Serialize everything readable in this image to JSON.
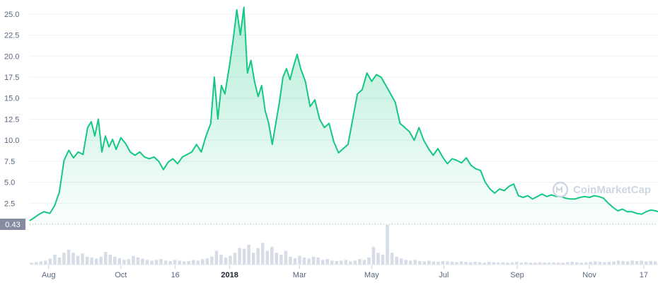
{
  "watermark": {
    "text": "CoinMarketCap",
    "icon": "coinmarketcap-logo-icon"
  },
  "current_badge": {
    "label": "0.43",
    "value": 0.43
  },
  "colors": {
    "line": "#16c784",
    "area_top": "#16c784",
    "grid": "#eef1f6",
    "volume": "#d7dde6",
    "badge": "#858ca2",
    "axis_text": "#58667e"
  },
  "chart_data": {
    "type": "area",
    "title": "",
    "xlabel": "",
    "ylabel": "",
    "ylim": [
      0,
      26
    ],
    "y_ticks": [
      "2.5",
      "5.0",
      "7.5",
      "10.0",
      "12.5",
      "15.0",
      "17.5",
      "20.0",
      "22.5",
      "25.0"
    ],
    "x_ticks": [
      {
        "label": "Aug",
        "date": "2017-08-01",
        "bold": false
      },
      {
        "label": "Oct",
        "date": "2017-10-01",
        "bold": false
      },
      {
        "label": "16",
        "date": "2017-11-16",
        "bold": false
      },
      {
        "label": "2018",
        "date": "2018-01-01",
        "bold": true
      },
      {
        "label": "Mar",
        "date": "2018-03-01",
        "bold": false
      },
      {
        "label": "May",
        "date": "2018-05-01",
        "bold": false
      },
      {
        "label": "Jul",
        "date": "2018-07-01",
        "bold": false
      },
      {
        "label": "Sep",
        "date": "2018-09-01",
        "bold": false
      },
      {
        "label": "Nov",
        "date": "2018-11-01",
        "bold": false
      },
      {
        "label": "17",
        "date": "2018-12-17",
        "bold": false
      }
    ],
    "xlim": [
      "2017-07-16",
      "2018-12-29"
    ],
    "series": [
      {
        "points": [
          [
            "2017-07-16",
            0.43
          ],
          [
            "2017-07-20",
            0.8
          ],
          [
            "2017-07-24",
            1.2
          ],
          [
            "2017-07-28",
            1.5
          ],
          [
            "2017-08-02",
            1.3
          ],
          [
            "2017-08-06",
            2.2
          ],
          [
            "2017-08-10",
            3.8
          ],
          [
            "2017-08-14",
            7.6
          ],
          [
            "2017-08-18",
            8.8
          ],
          [
            "2017-08-22",
            7.9
          ],
          [
            "2017-08-26",
            8.6
          ],
          [
            "2017-08-30",
            8.3
          ],
          [
            "2017-09-03",
            11.5
          ],
          [
            "2017-09-06",
            12.2
          ],
          [
            "2017-09-09",
            10.5
          ],
          [
            "2017-09-12",
            12.5
          ],
          [
            "2017-09-15",
            8.6
          ],
          [
            "2017-09-18",
            10.5
          ],
          [
            "2017-09-21",
            9.2
          ],
          [
            "2017-09-24",
            10.1
          ],
          [
            "2017-09-27",
            8.9
          ],
          [
            "2017-10-01",
            10.3
          ],
          [
            "2017-10-05",
            9.6
          ],
          [
            "2017-10-09",
            8.6
          ],
          [
            "2017-10-13",
            8.2
          ],
          [
            "2017-10-17",
            8.6
          ],
          [
            "2017-10-21",
            8.0
          ],
          [
            "2017-10-25",
            7.8
          ],
          [
            "2017-10-29",
            8.0
          ],
          [
            "2017-11-02",
            7.5
          ],
          [
            "2017-11-06",
            6.5
          ],
          [
            "2017-11-10",
            7.4
          ],
          [
            "2017-11-14",
            7.8
          ],
          [
            "2017-11-18",
            7.2
          ],
          [
            "2017-11-22",
            8.0
          ],
          [
            "2017-11-26",
            8.3
          ],
          [
            "2017-11-30",
            8.6
          ],
          [
            "2017-12-04",
            9.5
          ],
          [
            "2017-12-08",
            8.6
          ],
          [
            "2017-12-12",
            10.5
          ],
          [
            "2017-12-16",
            12.0
          ],
          [
            "2017-12-19",
            17.5
          ],
          [
            "2017-12-22",
            12.5
          ],
          [
            "2017-12-25",
            16.5
          ],
          [
            "2017-12-28",
            15.5
          ],
          [
            "2018-01-01",
            19.0
          ],
          [
            "2018-01-04",
            22.0
          ],
          [
            "2018-01-07",
            25.5
          ],
          [
            "2018-01-10",
            22.5
          ],
          [
            "2018-01-13",
            25.8
          ],
          [
            "2018-01-16",
            18.0
          ],
          [
            "2018-01-19",
            19.5
          ],
          [
            "2018-01-22",
            17.0
          ],
          [
            "2018-01-25",
            15.2
          ],
          [
            "2018-01-28",
            16.5
          ],
          [
            "2018-01-31",
            13.5
          ],
          [
            "2018-02-03",
            12.0
          ],
          [
            "2018-02-06",
            9.5
          ],
          [
            "2018-02-09",
            12.0
          ],
          [
            "2018-02-12",
            14.5
          ],
          [
            "2018-02-15",
            17.5
          ],
          [
            "2018-02-18",
            18.5
          ],
          [
            "2018-02-21",
            17.2
          ],
          [
            "2018-02-24",
            18.8
          ],
          [
            "2018-02-27",
            20.2
          ],
          [
            "2018-03-02",
            18.5
          ],
          [
            "2018-03-06",
            17.0
          ],
          [
            "2018-03-10",
            14.0
          ],
          [
            "2018-03-14",
            14.8
          ],
          [
            "2018-03-18",
            12.5
          ],
          [
            "2018-03-22",
            11.5
          ],
          [
            "2018-03-26",
            12.0
          ],
          [
            "2018-03-30",
            9.8
          ],
          [
            "2018-04-03",
            8.5
          ],
          [
            "2018-04-07",
            9.0
          ],
          [
            "2018-04-11",
            9.5
          ],
          [
            "2018-04-15",
            12.5
          ],
          [
            "2018-04-19",
            15.5
          ],
          [
            "2018-04-23",
            16.0
          ],
          [
            "2018-04-27",
            18.0
          ],
          [
            "2018-05-01",
            17.0
          ],
          [
            "2018-05-05",
            17.8
          ],
          [
            "2018-05-09",
            17.5
          ],
          [
            "2018-05-13",
            16.5
          ],
          [
            "2018-05-17",
            15.5
          ],
          [
            "2018-05-21",
            14.5
          ],
          [
            "2018-05-25",
            12.0
          ],
          [
            "2018-05-29",
            11.5
          ],
          [
            "2018-06-02",
            11.0
          ],
          [
            "2018-06-06",
            10.0
          ],
          [
            "2018-06-10",
            11.5
          ],
          [
            "2018-06-14",
            10.0
          ],
          [
            "2018-06-18",
            9.0
          ],
          [
            "2018-06-22",
            8.2
          ],
          [
            "2018-06-26",
            9.0
          ],
          [
            "2018-06-30",
            8.0
          ],
          [
            "2018-07-04",
            7.2
          ],
          [
            "2018-07-08",
            7.8
          ],
          [
            "2018-07-12",
            7.6
          ],
          [
            "2018-07-16",
            7.3
          ],
          [
            "2018-07-20",
            7.9
          ],
          [
            "2018-07-24",
            7.0
          ],
          [
            "2018-07-28",
            6.6
          ],
          [
            "2018-08-01",
            6.4
          ],
          [
            "2018-08-05",
            5.0
          ],
          [
            "2018-08-09",
            4.2
          ],
          [
            "2018-08-13",
            3.7
          ],
          [
            "2018-08-17",
            4.2
          ],
          [
            "2018-08-21",
            4.0
          ],
          [
            "2018-08-25",
            4.5
          ],
          [
            "2018-08-29",
            4.8
          ],
          [
            "2018-09-02",
            3.4
          ],
          [
            "2018-09-06",
            3.2
          ],
          [
            "2018-09-10",
            3.4
          ],
          [
            "2018-09-14",
            3.0
          ],
          [
            "2018-09-18",
            3.3
          ],
          [
            "2018-09-22",
            3.6
          ],
          [
            "2018-09-26",
            3.3
          ],
          [
            "2018-09-30",
            3.5
          ],
          [
            "2018-10-04",
            3.3
          ],
          [
            "2018-10-08",
            3.3
          ],
          [
            "2018-10-12",
            3.1
          ],
          [
            "2018-10-16",
            3.0
          ],
          [
            "2018-10-20",
            3.0
          ],
          [
            "2018-10-24",
            3.2
          ],
          [
            "2018-10-28",
            3.3
          ],
          [
            "2018-11-01",
            3.2
          ],
          [
            "2018-11-05",
            3.4
          ],
          [
            "2018-11-09",
            3.3
          ],
          [
            "2018-11-13",
            3.1
          ],
          [
            "2018-11-17",
            2.5
          ],
          [
            "2018-11-21",
            2.0
          ],
          [
            "2018-11-25",
            1.6
          ],
          [
            "2018-11-29",
            1.8
          ],
          [
            "2018-12-03",
            1.5
          ],
          [
            "2018-12-07",
            1.5
          ],
          [
            "2018-12-11",
            1.3
          ],
          [
            "2018-12-15",
            1.2
          ],
          [
            "2018-12-19",
            1.5
          ],
          [
            "2018-12-23",
            1.7
          ],
          [
            "2018-12-27",
            1.6
          ],
          [
            "2018-12-29",
            1.5
          ]
        ]
      }
    ],
    "volume": {
      "relative_values": [
        0.05,
        0.06,
        0.08,
        0.1,
        0.15,
        0.25,
        0.18,
        0.3,
        0.38,
        0.3,
        0.22,
        0.28,
        0.2,
        0.18,
        0.15,
        0.2,
        0.32,
        0.25,
        0.2,
        0.16,
        0.12,
        0.14,
        0.22,
        0.18,
        0.15,
        0.12,
        0.1,
        0.12,
        0.14,
        0.1,
        0.09,
        0.12,
        0.1,
        0.08,
        0.09,
        0.12,
        0.1,
        0.14,
        0.16,
        0.2,
        0.35,
        0.25,
        0.18,
        0.22,
        0.3,
        0.42,
        0.4,
        0.5,
        0.3,
        0.42,
        0.55,
        0.35,
        0.45,
        0.3,
        0.25,
        0.35,
        0.2,
        0.16,
        0.22,
        0.18,
        0.15,
        0.2,
        0.18,
        0.12,
        0.14,
        0.1,
        0.09,
        0.1,
        0.12,
        0.08,
        0.1,
        0.14,
        0.12,
        0.18,
        0.45,
        0.3,
        0.25,
        1.0,
        0.3,
        0.2,
        0.15,
        0.12,
        0.1,
        0.12,
        0.09,
        0.08,
        0.1,
        0.08,
        0.07,
        0.09,
        0.08,
        0.07,
        0.06,
        0.08,
        0.07,
        0.06,
        0.07,
        0.06,
        0.05,
        0.07,
        0.06,
        0.05,
        0.06,
        0.05,
        0.06,
        0.07,
        0.05,
        0.06,
        0.05,
        0.05,
        0.06,
        0.05,
        0.05,
        0.06,
        0.05,
        0.05,
        0.06,
        0.07,
        0.06,
        0.05,
        0.06,
        0.07,
        0.08,
        0.07,
        0.06,
        0.07,
        0.08,
        0.1,
        0.09,
        0.08,
        0.1,
        0.09,
        0.1,
        0.08,
        0.09,
        0.08
      ]
    }
  }
}
